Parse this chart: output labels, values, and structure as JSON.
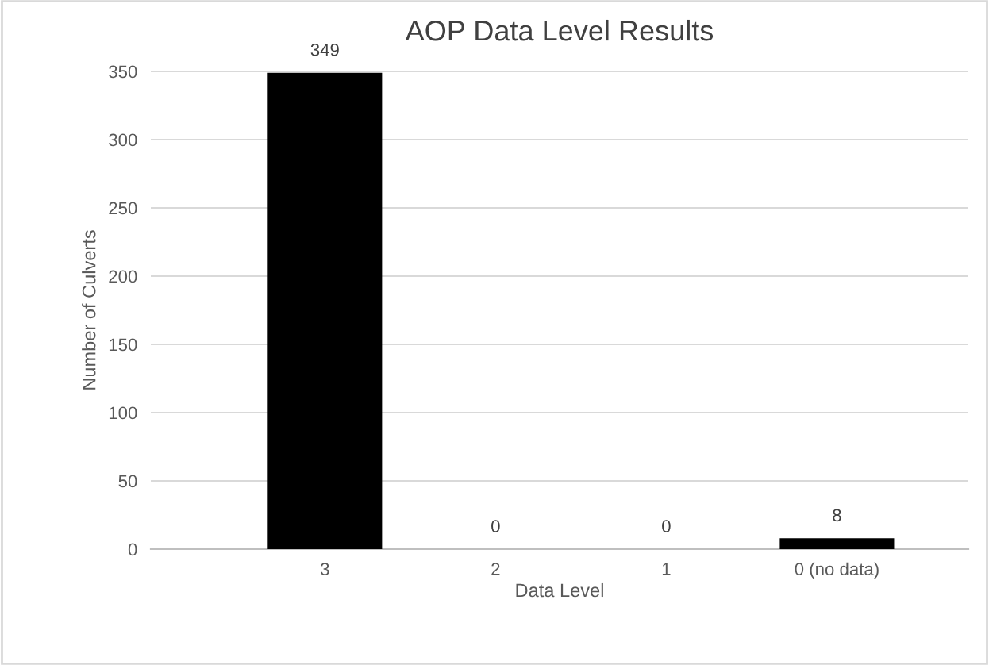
{
  "chart_data": {
    "type": "bar",
    "title": "AOP Data Level Results",
    "xlabel": "Data Level",
    "ylabel": "Number of Culverts",
    "categories": [
      "3",
      "2",
      "1",
      "0 (no data)"
    ],
    "values": [
      349,
      0,
      0,
      8
    ],
    "color": "#000000",
    "ylim": [
      0,
      350
    ],
    "yticks": [
      0,
      50,
      100,
      150,
      200,
      250,
      300,
      350
    ],
    "grid": "y",
    "data_labels": true
  }
}
